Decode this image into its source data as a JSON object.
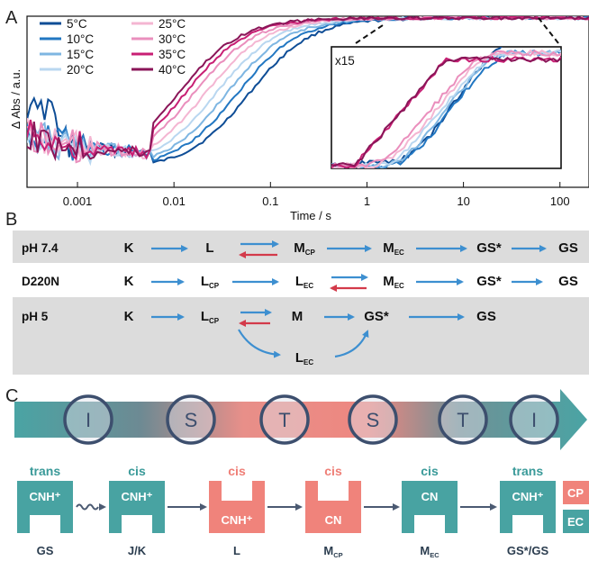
{
  "panelA": {
    "letter": "A",
    "xlabel": "Time / s",
    "ylabel": "Δ Abs / a.u.",
    "inset_label": "x15",
    "x_ticks": [
      "0.001",
      "0.01",
      "0.1",
      "1",
      "10",
      "100"
    ],
    "legend": [
      {
        "label": "5°C",
        "color": "#0e4d96"
      },
      {
        "label": "10°C",
        "color": "#2277c2"
      },
      {
        "label": "15°C",
        "color": "#7eb6e2"
      },
      {
        "label": "20°C",
        "color": "#b9d7f0"
      },
      {
        "label": "25°C",
        "color": "#f4b6d2"
      },
      {
        "label": "30°C",
        "color": "#ea8fbd"
      },
      {
        "label": "35°C",
        "color": "#c81f74"
      },
      {
        "label": "40°C",
        "color": "#8a1558"
      }
    ]
  },
  "chart_data": {
    "type": "line",
    "xlabel": "Time / s",
    "ylabel": "Δ Abs / a.u.",
    "x_scale": "log",
    "xlim": [
      0.0003,
      200
    ],
    "series": [
      {
        "name": "5°C",
        "midpoint_s": 0.06
      },
      {
        "name": "10°C",
        "midpoint_s": 0.045
      },
      {
        "name": "15°C",
        "midpoint_s": 0.035
      },
      {
        "name": "20°C",
        "midpoint_s": 0.027
      },
      {
        "name": "25°C",
        "midpoint_s": 0.021
      },
      {
        "name": "30°C",
        "midpoint_s": 0.016
      },
      {
        "name": "35°C",
        "midpoint_s": 0.013
      },
      {
        "name": "40°C",
        "midpoint_s": 0.011
      }
    ]
  },
  "panelB": {
    "letter": "B",
    "rows": [
      {
        "condition": "pH 7.4",
        "states": [
          {
            "t": "K",
            "s": ""
          },
          {
            "t": "L",
            "s": ""
          },
          {
            "t": "M",
            "s": "CP"
          },
          {
            "t": "M",
            "s": "EC"
          },
          {
            "t": "GS*",
            "s": ""
          },
          {
            "t": "GS",
            "s": ""
          }
        ]
      },
      {
        "condition": "D220N",
        "states": [
          {
            "t": "K",
            "s": ""
          },
          {
            "t": "L",
            "s": "CP"
          },
          {
            "t": "L",
            "s": "EC"
          },
          {
            "t": "M",
            "s": "EC"
          },
          {
            "t": "GS*",
            "s": ""
          },
          {
            "t": "GS",
            "s": ""
          }
        ]
      },
      {
        "condition": "pH 5",
        "states": [
          {
            "t": "K",
            "s": ""
          },
          {
            "t": "L",
            "s": "CP"
          },
          {
            "t": "M",
            "s": ""
          },
          {
            "t": "GS*",
            "s": ""
          },
          {
            "t": "GS",
            "s": ""
          },
          {
            "t": "L",
            "s": "EC"
          }
        ]
      }
    ]
  },
  "panelC": {
    "letter": "C",
    "rings": [
      "I",
      "S",
      "T",
      "S",
      "T",
      "I"
    ],
    "cards": [
      {
        "top": "trans",
        "top_color": "#3a9a99",
        "inner": "CNH⁺",
        "bottom": "GS",
        "bottom_sub": ""
      },
      {
        "top": "cis",
        "top_color": "#3a9a99",
        "inner": "CNH⁺",
        "bottom": "J/K",
        "bottom_sub": ""
      },
      {
        "top": "cis",
        "top_color": "#ef7e76",
        "inner": "CNH⁺",
        "bottom": "L",
        "bottom_sub": ""
      },
      {
        "top": "cis",
        "top_color": "#ef7e76",
        "inner": "CN",
        "bottom": "M",
        "bottom_sub": "CP"
      },
      {
        "top": "cis",
        "top_color": "#3a9a99",
        "inner": "CN",
        "bottom": "M",
        "bottom_sub": "EC"
      },
      {
        "top": "trans",
        "top_color": "#3a9a99",
        "inner": "CNH⁺",
        "bottom": "GS*/GS",
        "bottom_sub": ""
      }
    ],
    "side_legend": {
      "top": "CP",
      "bottom": "EC"
    },
    "colors": {
      "teal": "#48a3a2",
      "coral": "#f0837b",
      "arrow": "#4b5a72"
    }
  }
}
